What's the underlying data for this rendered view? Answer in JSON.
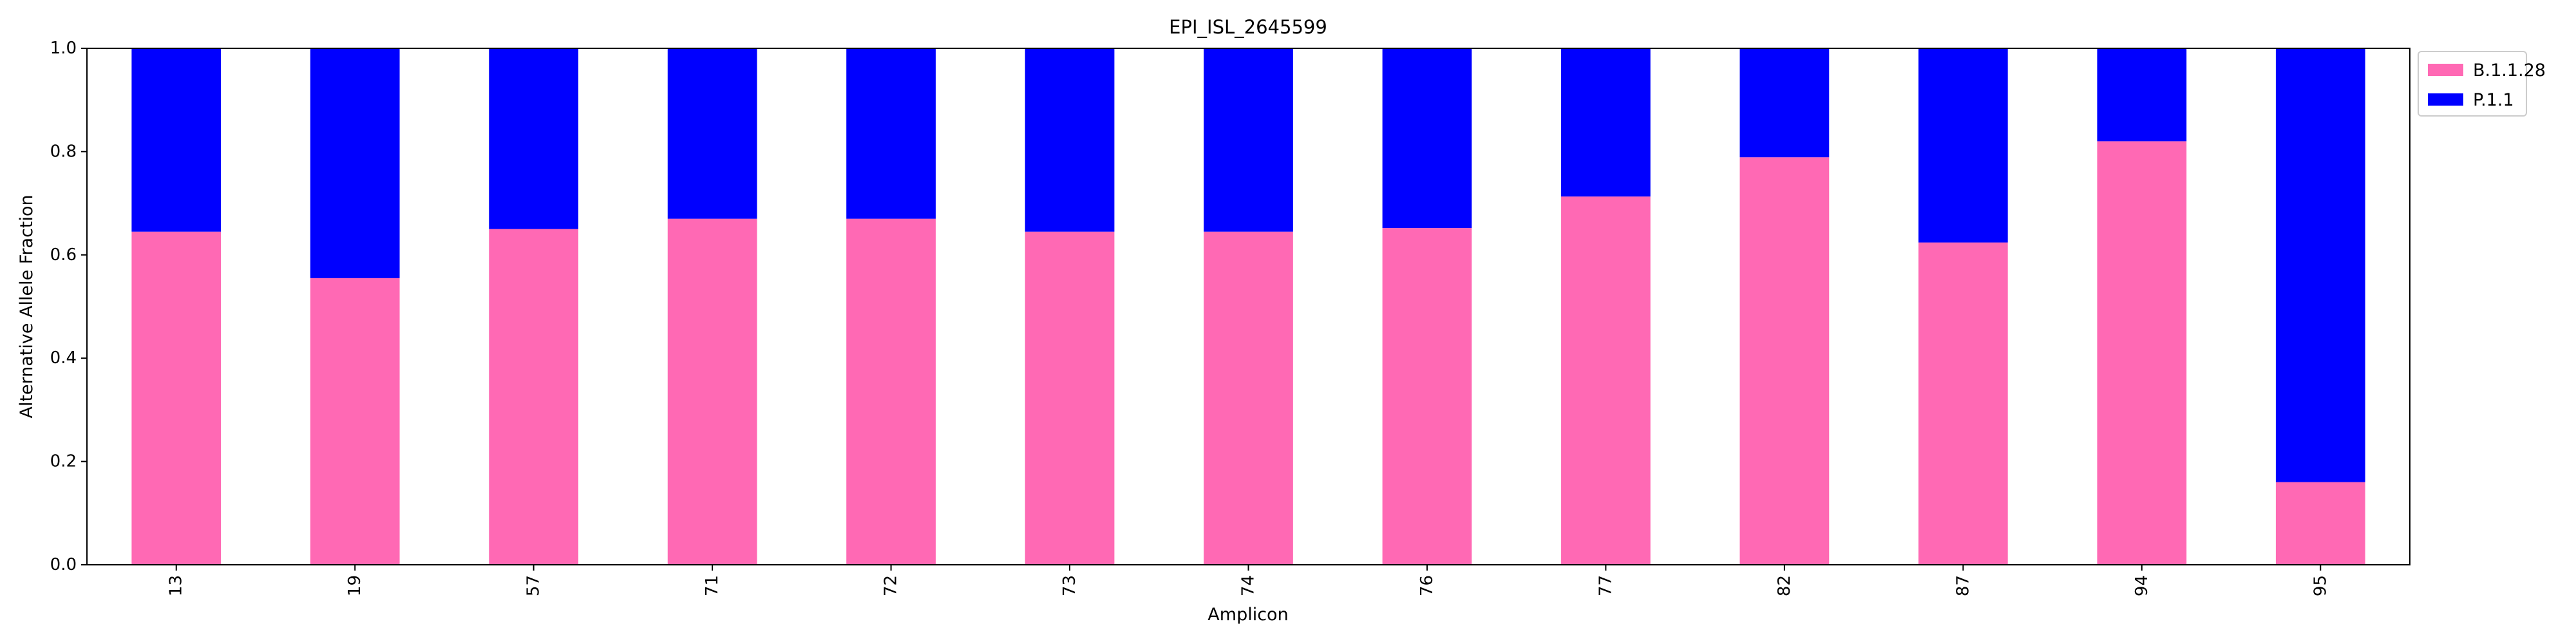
{
  "chart_data": {
    "type": "bar",
    "stacked": true,
    "title": "EPI_ISL_2645599",
    "xlabel": "Amplicon",
    "ylabel": "Alternative Allele Fraction",
    "ylim": [
      0,
      1.0
    ],
    "yticks": [
      "0.0",
      "0.2",
      "0.4",
      "0.6",
      "0.8",
      "1.0"
    ],
    "categories": [
      "13",
      "19",
      "57",
      "71",
      "72",
      "73",
      "74",
      "76",
      "77",
      "82",
      "87",
      "94",
      "95"
    ],
    "series": [
      {
        "name": "B.1.1.28",
        "color": "#ff69b4",
        "values": [
          0.645,
          0.555,
          0.65,
          0.67,
          0.67,
          0.645,
          0.645,
          0.652,
          0.713,
          0.789,
          0.624,
          0.82,
          0.16
        ]
      },
      {
        "name": "P.1.1",
        "color": "#0000ff",
        "values": [
          0.355,
          0.445,
          0.35,
          0.33,
          0.33,
          0.355,
          0.355,
          0.348,
          0.287,
          0.211,
          0.376,
          0.18,
          0.84
        ]
      }
    ],
    "legend_position": "upper right, outside plot",
    "grid": false
  }
}
